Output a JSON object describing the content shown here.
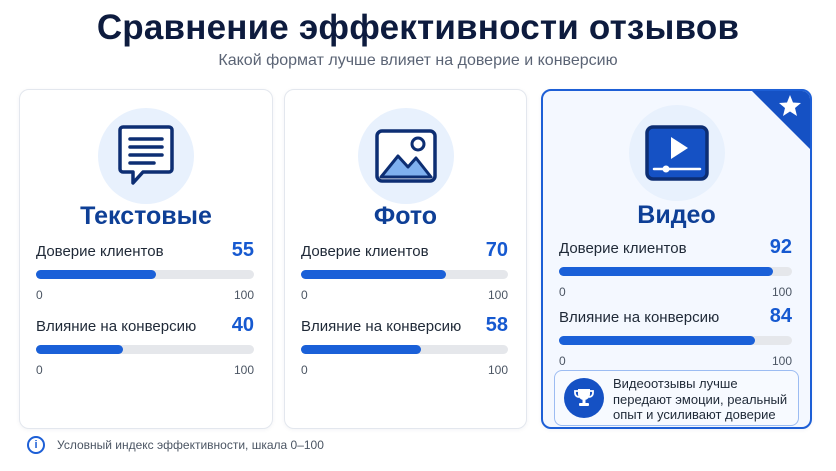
{
  "title": "Сравнение эффективности отзывов",
  "subtitle": "Какой формат лучше влияет на доверие и конверсию",
  "cards": [
    {
      "title": "Текстовые",
      "icon": "speech-bubble-text-icon",
      "metrics": [
        {
          "label": "Доверие клиентов",
          "value": 55,
          "min": "0",
          "max": "100"
        },
        {
          "label": "Влияние на конверсию",
          "value": 40,
          "min": "0",
          "max": "100"
        }
      ]
    },
    {
      "title": "Фото",
      "icon": "image-icon",
      "metrics": [
        {
          "label": "Доверие клиентов",
          "value": 70,
          "min": "0",
          "max": "100"
        },
        {
          "label": "Влияние на конверсию",
          "value": 58,
          "min": "0",
          "max": "100"
        }
      ]
    },
    {
      "title": "Видео",
      "icon": "video-play-icon",
      "featured": true,
      "metrics": [
        {
          "label": "Доверие клиентов",
          "value": 92,
          "min": "0",
          "max": "100"
        },
        {
          "label": "Влияние на конверсию",
          "value": 84,
          "min": "0",
          "max": "100"
        }
      ],
      "callout": "Видеоотзывы лучше передают эмоции, реальный опыт и усиливают доверие"
    }
  ],
  "footnote": "Условный индекс эффективности, шкала 0–100",
  "colors": {
    "accent": "#1a60d8",
    "title": "#0e3f96",
    "track": "#e5e7eb",
    "icon_bg": "#e8f1fd"
  },
  "chart_data": {
    "type": "bar",
    "orientation": "horizontal",
    "categories": [
      "Текстовые",
      "Фото",
      "Видео"
    ],
    "series": [
      {
        "name": "Доверие клиентов",
        "values": [
          55,
          70,
          92
        ]
      },
      {
        "name": "Влияние на конверсию",
        "values": [
          40,
          58,
          84
        ]
      }
    ],
    "xlim": [
      0,
      100
    ],
    "title": "Сравнение эффективности отзывов",
    "subtitle": "Какой формат лучше влияет на доверие и конверсию",
    "grid": false
  }
}
